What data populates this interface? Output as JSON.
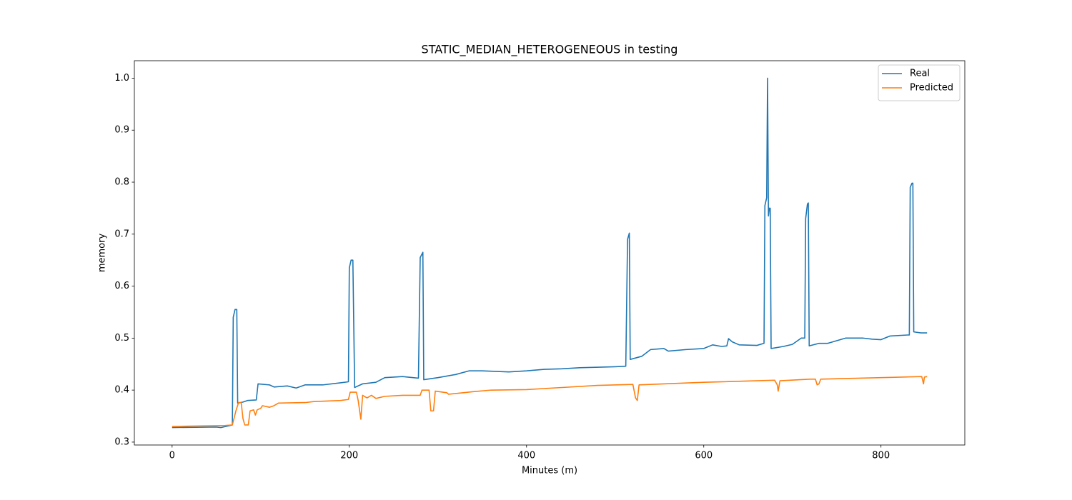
{
  "chart_data": {
    "type": "line",
    "title": "STATIC_MEDIAN_HETEROGENEOUS in testing",
    "x_label": "Minutes (m)",
    "y_label": "memory",
    "xlim": [
      -42.6,
      894.6
    ],
    "ylim": [
      0.2944,
      1.0336
    ],
    "xticks": [
      0,
      200,
      400,
      600,
      800
    ],
    "yticks": [
      0.3,
      0.4,
      0.5,
      0.6,
      0.7,
      0.8,
      0.9,
      {
        "value": 1,
        "label": "1.0"
      }
    ],
    "grid": false,
    "legend": "upper-right",
    "series": [
      {
        "name": "Real",
        "color": "#1f77b4",
        "x": [
          0,
          50,
          55,
          68,
          69,
          71,
          73,
          74,
          80,
          85,
          95,
          97,
          110,
          115,
          130,
          140,
          150,
          170,
          190,
          199,
          200,
          202,
          204,
          206,
          215,
          230,
          240,
          260,
          278,
          280,
          283,
          284,
          300,
          320,
          335,
          350,
          380,
          400,
          420,
          440,
          460,
          500,
          512,
          514,
          516,
          517,
          530,
          540,
          555,
          560,
          580,
          600,
          610,
          620,
          626,
          628,
          632,
          640,
          660,
          668,
          669,
          671,
          672,
          673,
          674,
          675,
          676,
          690,
          700,
          710,
          714,
          715,
          717,
          718,
          719,
          730,
          740,
          750,
          760,
          780,
          790,
          800,
          810,
          830,
          832,
          833,
          835,
          836,
          837,
          845,
          852
        ],
        "values": [
          0.328,
          0.329,
          0.328,
          0.333,
          0.54,
          0.555,
          0.555,
          0.375,
          0.377,
          0.38,
          0.381,
          0.412,
          0.41,
          0.406,
          0.408,
          0.404,
          0.41,
          0.41,
          0.414,
          0.416,
          0.635,
          0.65,
          0.65,
          0.405,
          0.412,
          0.415,
          0.424,
          0.426,
          0.423,
          0.655,
          0.665,
          0.42,
          0.424,
          0.43,
          0.437,
          0.437,
          0.435,
          0.437,
          0.44,
          0.441,
          0.443,
          0.445,
          0.446,
          0.69,
          0.702,
          0.459,
          0.465,
          0.478,
          0.48,
          0.475,
          0.478,
          0.48,
          0.487,
          0.484,
          0.485,
          0.499,
          0.493,
          0.487,
          0.486,
          0.49,
          0.755,
          0.77,
          1.0,
          0.735,
          0.75,
          0.75,
          0.48,
          0.484,
          0.488,
          0.5,
          0.5,
          0.73,
          0.758,
          0.76,
          0.485,
          0.49,
          0.49,
          0.495,
          0.5,
          0.5,
          0.498,
          0.497,
          0.504,
          0.506,
          0.506,
          0.79,
          0.798,
          0.798,
          0.512,
          0.51,
          0.51
        ]
      },
      {
        "name": "Predicted",
        "color": "#ff7f0e",
        "x": [
          0,
          60,
          68,
          72,
          75,
          78,
          80,
          82,
          86,
          88,
          92,
          94,
          96,
          100,
          102,
          110,
          115,
          120,
          150,
          160,
          190,
          199,
          201,
          208,
          210,
          213,
          215,
          220,
          225,
          230,
          240,
          260,
          280,
          282,
          290,
          292,
          295,
          297,
          310,
          312,
          340,
          360,
          400,
          440,
          480,
          520,
          523,
          525,
          527,
          600,
          680,
          683,
          684,
          686,
          720,
          726,
          728,
          730,
          732,
          800,
          846,
          848,
          849,
          852
        ],
        "values": [
          0.33,
          0.332,
          0.333,
          0.36,
          0.376,
          0.376,
          0.345,
          0.333,
          0.333,
          0.36,
          0.362,
          0.352,
          0.362,
          0.365,
          0.37,
          0.367,
          0.37,
          0.375,
          0.376,
          0.378,
          0.38,
          0.382,
          0.396,
          0.396,
          0.38,
          0.344,
          0.39,
          0.385,
          0.39,
          0.384,
          0.388,
          0.39,
          0.39,
          0.4,
          0.4,
          0.36,
          0.36,
          0.398,
          0.395,
          0.392,
          0.397,
          0.4,
          0.401,
          0.405,
          0.409,
          0.411,
          0.385,
          0.38,
          0.41,
          0.415,
          0.419,
          0.41,
          0.398,
          0.418,
          0.421,
          0.421,
          0.41,
          0.412,
          0.421,
          0.424,
          0.426,
          0.412,
          0.425,
          0.426
        ]
      }
    ]
  }
}
